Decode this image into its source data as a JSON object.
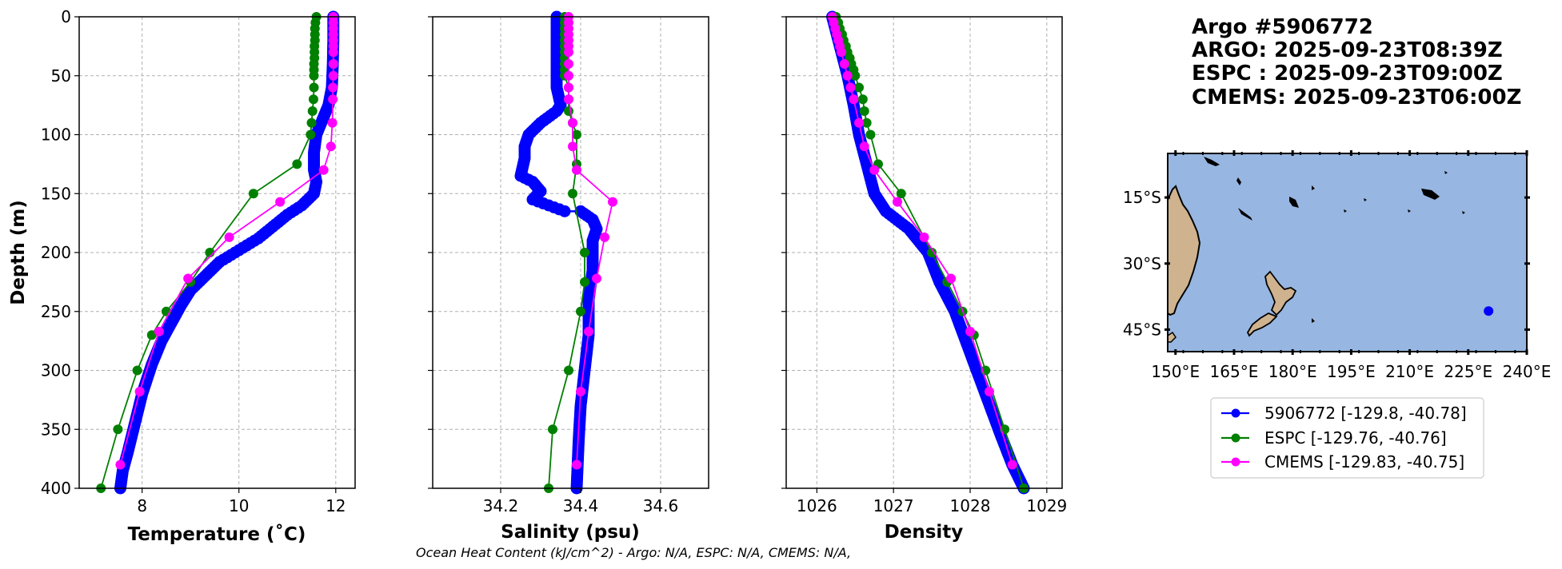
{
  "colors": {
    "argo": "#0000ff",
    "espc": "#008000",
    "cmems": "#ff00ff",
    "ocean": "#97b6e1",
    "land": "#cfb28e"
  },
  "chart_data": [
    {
      "type": "line",
      "id": "temperature",
      "xlabel": "Temperature (˚C)",
      "ylabel": "Depth (m)",
      "xlim": [
        6.7,
        12.4
      ],
      "ylim": [
        400,
        0
      ],
      "xticks": [
        {
          "v": 8,
          "label": "8"
        },
        {
          "v": 10,
          "label": "10"
        },
        {
          "v": 12,
          "label": "12"
        }
      ],
      "yticks": [
        {
          "v": 0,
          "label": "0"
        },
        {
          "v": 50,
          "label": "50"
        },
        {
          "v": 100,
          "label": "100"
        },
        {
          "v": 150,
          "label": "150"
        },
        {
          "v": 200,
          "label": "200"
        },
        {
          "v": 250,
          "label": "250"
        },
        {
          "v": 300,
          "label": "300"
        },
        {
          "v": 350,
          "label": "350"
        },
        {
          "v": 400,
          "label": "400"
        }
      ],
      "grid": true,
      "series": [
        {
          "name": "5906772",
          "color": "#0000ff",
          "marker_r": 7.5,
          "line_w": 2.5,
          "dense": true,
          "points": [
            [
              11.95,
              0
            ],
            [
              11.95,
              20
            ],
            [
              11.94,
              40
            ],
            [
              11.92,
              60
            ],
            [
              11.85,
              75
            ],
            [
              11.7,
              90
            ],
            [
              11.6,
              100
            ],
            [
              11.55,
              115
            ],
            [
              11.55,
              130
            ],
            [
              11.6,
              140
            ],
            [
              11.55,
              150
            ],
            [
              11.3,
              160
            ],
            [
              11.0,
              168
            ],
            [
              10.7,
              178
            ],
            [
              10.4,
              188
            ],
            [
              10.0,
              198
            ],
            [
              9.6,
              208
            ],
            [
              9.3,
              220
            ],
            [
              9.0,
              232
            ],
            [
              8.8,
              245
            ],
            [
              8.6,
              260
            ],
            [
              8.4,
              275
            ],
            [
              8.2,
              295
            ],
            [
              8.0,
              320
            ],
            [
              7.85,
              345
            ],
            [
              7.7,
              370
            ],
            [
              7.6,
              385
            ],
            [
              7.55,
              400
            ]
          ]
        },
        {
          "name": "ESPC",
          "color": "#008000",
          "marker_r": 6,
          "line_w": 1.8,
          "points": [
            [
              11.6,
              0
            ],
            [
              11.58,
              5
            ],
            [
              11.57,
              10
            ],
            [
              11.57,
              15
            ],
            [
              11.57,
              20
            ],
            [
              11.56,
              25
            ],
            [
              11.56,
              30
            ],
            [
              11.56,
              35
            ],
            [
              11.55,
              40
            ],
            [
              11.55,
              45
            ],
            [
              11.55,
              50
            ],
            [
              11.55,
              60
            ],
            [
              11.54,
              70
            ],
            [
              11.52,
              80
            ],
            [
              11.5,
              90
            ],
            [
              11.48,
              100
            ],
            [
              11.2,
              125
            ],
            [
              10.3,
              150
            ],
            [
              9.4,
              200
            ],
            [
              9.0,
              225
            ],
            [
              8.5,
              250
            ],
            [
              8.2,
              270
            ],
            [
              7.9,
              300
            ],
            [
              7.5,
              350
            ],
            [
              7.15,
              400
            ]
          ]
        },
        {
          "name": "CMEMS",
          "color": "#ff00ff",
          "marker_r": 6,
          "line_w": 1.8,
          "points": [
            [
              11.95,
              0
            ],
            [
              11.95,
              5
            ],
            [
              11.95,
              10
            ],
            [
              11.95,
              15
            ],
            [
              11.95,
              20
            ],
            [
              11.95,
              25
            ],
            [
              11.95,
              30
            ],
            [
              11.95,
              40
            ],
            [
              11.95,
              50
            ],
            [
              11.94,
              60
            ],
            [
              11.94,
              70
            ],
            [
              11.93,
              90
            ],
            [
              11.9,
              110
            ],
            [
              11.75,
              130
            ],
            [
              10.85,
              157
            ],
            [
              9.8,
              187
            ],
            [
              8.95,
              222
            ],
            [
              8.35,
              267
            ],
            [
              7.95,
              318
            ],
            [
              7.55,
              380
            ]
          ]
        }
      ]
    },
    {
      "type": "line",
      "id": "salinity",
      "xlabel": "Salinity (psu)",
      "xlim": [
        34.03,
        34.72
      ],
      "ylim": [
        400,
        0
      ],
      "xticks": [
        {
          "v": 34.2,
          "label": "34.2"
        },
        {
          "v": 34.4,
          "label": "34.4"
        },
        {
          "v": 34.6,
          "label": "34.6"
        }
      ],
      "grid": true,
      "series": [
        {
          "name": "5906772",
          "color": "#0000ff",
          "marker_r": 7.5,
          "line_w": 2.5,
          "dense": true,
          "points": [
            [
              34.34,
              0
            ],
            [
              34.34,
              20
            ],
            [
              34.34,
              40
            ],
            [
              34.34,
              60
            ],
            [
              34.35,
              75
            ],
            [
              34.34,
              80
            ],
            [
              34.3,
              90
            ],
            [
              34.27,
              100
            ],
            [
              34.26,
              110
            ],
            [
              34.26,
              120
            ],
            [
              34.25,
              135
            ],
            [
              34.28,
              140
            ],
            [
              34.3,
              148
            ],
            [
              34.28,
              155
            ],
            [
              34.32,
              160
            ],
            [
              34.36,
              165
            ],
            [
              34.4,
              165
            ],
            [
              34.43,
              172
            ],
            [
              34.44,
              180
            ],
            [
              34.43,
              190
            ],
            [
              34.43,
              200
            ],
            [
              34.43,
              215
            ],
            [
              34.42,
              240
            ],
            [
              34.42,
              270
            ],
            [
              34.41,
              300
            ],
            [
              34.4,
              330
            ],
            [
              34.395,
              360
            ],
            [
              34.39,
              400
            ]
          ]
        },
        {
          "name": "ESPC",
          "color": "#008000",
          "marker_r": 6,
          "line_w": 1.8,
          "points": [
            [
              34.36,
              0
            ],
            [
              34.36,
              5
            ],
            [
              34.36,
              10
            ],
            [
              34.36,
              15
            ],
            [
              34.36,
              20
            ],
            [
              34.36,
              25
            ],
            [
              34.36,
              30
            ],
            [
              34.36,
              35
            ],
            [
              34.36,
              40
            ],
            [
              34.36,
              45
            ],
            [
              34.36,
              50
            ],
            [
              34.37,
              60
            ],
            [
              34.37,
              70
            ],
            [
              34.37,
              80
            ],
            [
              34.38,
              90
            ],
            [
              34.39,
              100
            ],
            [
              34.39,
              125
            ],
            [
              34.38,
              150
            ],
            [
              34.41,
              200
            ],
            [
              34.41,
              225
            ],
            [
              34.4,
              250
            ],
            [
              34.37,
              300
            ],
            [
              34.33,
              350
            ],
            [
              34.32,
              400
            ]
          ]
        },
        {
          "name": "CMEMS",
          "color": "#ff00ff",
          "marker_r": 6,
          "line_w": 1.8,
          "points": [
            [
              34.37,
              0
            ],
            [
              34.37,
              5
            ],
            [
              34.37,
              10
            ],
            [
              34.37,
              15
            ],
            [
              34.37,
              20
            ],
            [
              34.37,
              25
            ],
            [
              34.37,
              30
            ],
            [
              34.37,
              40
            ],
            [
              34.37,
              50
            ],
            [
              34.37,
              60
            ],
            [
              34.37,
              70
            ],
            [
              34.38,
              90
            ],
            [
              34.38,
              110
            ],
            [
              34.39,
              130
            ],
            [
              34.48,
              157
            ],
            [
              34.46,
              187
            ],
            [
              34.44,
              222
            ],
            [
              34.42,
              267
            ],
            [
              34.4,
              318
            ],
            [
              34.39,
              380
            ]
          ]
        }
      ]
    },
    {
      "type": "line",
      "id": "density",
      "xlabel": "Density",
      "xlim": [
        1025.6,
        1029.2
      ],
      "ylim": [
        400,
        0
      ],
      "xticks": [
        {
          "v": 1026,
          "label": "1026"
        },
        {
          "v": 1027,
          "label": "1027"
        },
        {
          "v": 1028,
          "label": "1028"
        },
        {
          "v": 1029,
          "label": "1029"
        }
      ],
      "grid": true,
      "series": [
        {
          "name": "5906772",
          "color": "#0000ff",
          "marker_r": 7.5,
          "line_w": 2.5,
          "dense": true,
          "points": [
            [
              1026.2,
              0
            ],
            [
              1026.3,
              25
            ],
            [
              1026.4,
              50
            ],
            [
              1026.48,
              75
            ],
            [
              1026.55,
              100
            ],
            [
              1026.65,
              125
            ],
            [
              1026.75,
              150
            ],
            [
              1026.9,
              165
            ],
            [
              1027.2,
              180
            ],
            [
              1027.45,
              200
            ],
            [
              1027.6,
              225
            ],
            [
              1027.8,
              250
            ],
            [
              1028.0,
              285
            ],
            [
              1028.2,
              320
            ],
            [
              1028.4,
              355
            ],
            [
              1028.55,
              380
            ],
            [
              1028.7,
              400
            ]
          ]
        },
        {
          "name": "ESPC",
          "color": "#008000",
          "marker_r": 6,
          "line_w": 1.8,
          "points": [
            [
              1026.25,
              0
            ],
            [
              1026.28,
              5
            ],
            [
              1026.3,
              10
            ],
            [
              1026.33,
              15
            ],
            [
              1026.35,
              20
            ],
            [
              1026.38,
              25
            ],
            [
              1026.4,
              30
            ],
            [
              1026.43,
              35
            ],
            [
              1026.45,
              40
            ],
            [
              1026.48,
              45
            ],
            [
              1026.5,
              50
            ],
            [
              1026.55,
              60
            ],
            [
              1026.6,
              70
            ],
            [
              1026.62,
              80
            ],
            [
              1026.65,
              90
            ],
            [
              1026.7,
              100
            ],
            [
              1026.8,
              125
            ],
            [
              1027.1,
              150
            ],
            [
              1027.5,
              200
            ],
            [
              1027.7,
              225
            ],
            [
              1027.9,
              250
            ],
            [
              1028.05,
              270
            ],
            [
              1028.2,
              300
            ],
            [
              1028.45,
              350
            ],
            [
              1028.7,
              400
            ]
          ]
        },
        {
          "name": "CMEMS",
          "color": "#ff00ff",
          "marker_r": 6,
          "line_w": 1.8,
          "points": [
            [
              1026.2,
              0
            ],
            [
              1026.22,
              5
            ],
            [
              1026.24,
              10
            ],
            [
              1026.26,
              15
            ],
            [
              1026.28,
              20
            ],
            [
              1026.3,
              25
            ],
            [
              1026.32,
              30
            ],
            [
              1026.36,
              40
            ],
            [
              1026.4,
              50
            ],
            [
              1026.44,
              60
            ],
            [
              1026.48,
              70
            ],
            [
              1026.55,
              90
            ],
            [
              1026.62,
              110
            ],
            [
              1026.75,
              130
            ],
            [
              1027.05,
              157
            ],
            [
              1027.4,
              187
            ],
            [
              1027.75,
              222
            ],
            [
              1028.0,
              267
            ],
            [
              1028.25,
              318
            ],
            [
              1028.55,
              380
            ]
          ]
        }
      ]
    },
    {
      "type": "map",
      "id": "location-map",
      "lon_range": [
        148,
        240
      ],
      "lat_range": [
        -50,
        -5
      ],
      "xticks": [
        {
          "v": 150,
          "label": "150°E"
        },
        {
          "v": 165,
          "label": "165°E"
        },
        {
          "v": 180,
          "label": "180°E"
        },
        {
          "v": 195,
          "label": "195°E"
        },
        {
          "v": 210,
          "label": "210°E"
        },
        {
          "v": 225,
          "label": "225°E"
        },
        {
          "v": 240,
          "label": "240°E"
        }
      ],
      "yticks": [
        {
          "v": -15,
          "label": "15°S"
        },
        {
          "v": -30,
          "label": "30°S"
        },
        {
          "v": -45,
          "label": "45°S"
        }
      ],
      "argo_location": {
        "lon": 230.2,
        "lat": -40.78
      }
    }
  ],
  "title": {
    "line1": "Argo #5906772",
    "line2": "ARGO: 2025-09-23T08:39Z",
    "line3": "ESPC : 2025-09-23T09:00Z",
    "line4": "CMEMS: 2025-09-23T06:00Z"
  },
  "legend": [
    {
      "label": "5906772 [-129.8, -40.78]",
      "color": "#0000ff"
    },
    {
      "label": "ESPC [-129.76, -40.76]",
      "color": "#008000"
    },
    {
      "label": "CMEMS [-129.83, -40.75]",
      "color": "#ff00ff"
    }
  ],
  "footer": "Ocean Heat Content (kJ/cm^2) - Argo: N/A,  ESPC: N/A,  CMEMS: N/A,"
}
